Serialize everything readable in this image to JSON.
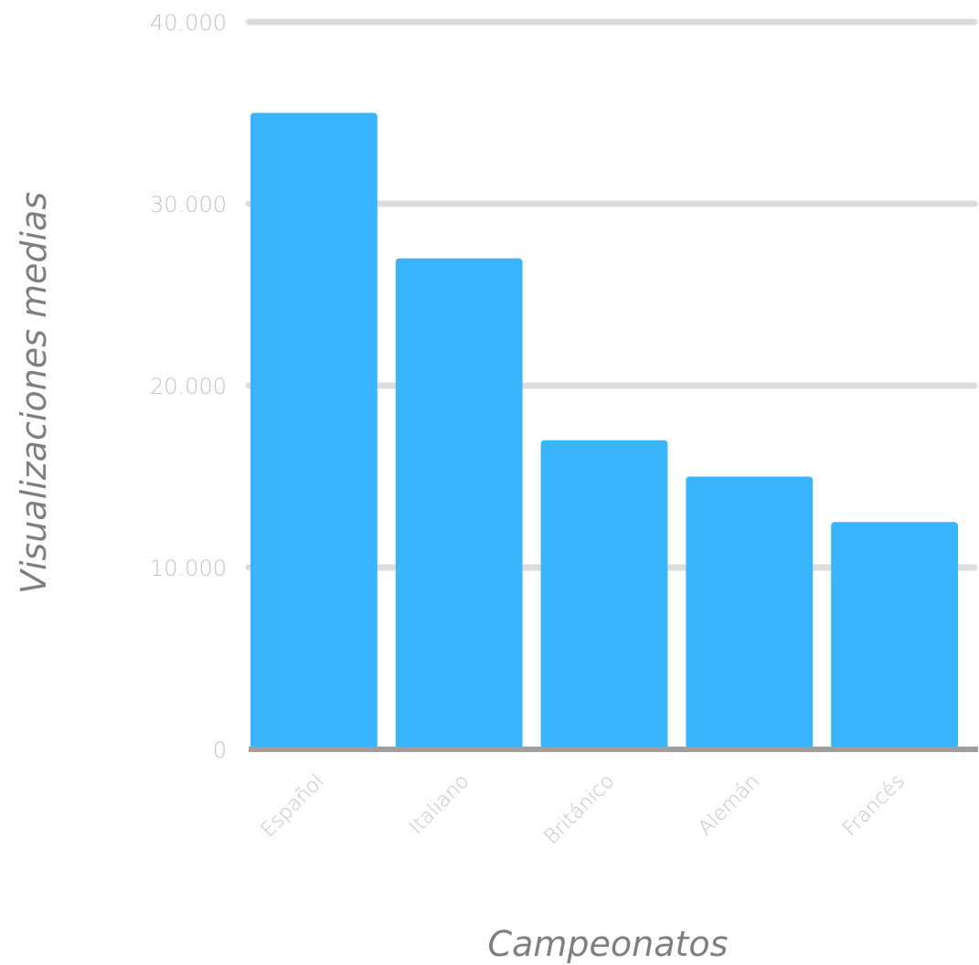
{
  "chart_data": {
    "type": "bar",
    "title": "",
    "xlabel": "Campeonatos",
    "ylabel": "Visualizaciones medias",
    "categories": [
      "Español",
      "Italiano",
      "Británico",
      "Alemán",
      "Francés"
    ],
    "values": [
      35000,
      27000,
      17000,
      15000,
      12500
    ],
    "ylim": [
      0,
      40000
    ],
    "yticks": [
      0,
      10000,
      20000,
      30000,
      40000
    ],
    "ytick_labels": [
      "0",
      "10.000",
      "20.000",
      "30.000",
      "40.000"
    ],
    "grid": true,
    "legend": "none",
    "colors": {
      "bar": "#38b5fd",
      "grid": "#dcdcdc",
      "baseline": "#9e9e9e"
    }
  }
}
